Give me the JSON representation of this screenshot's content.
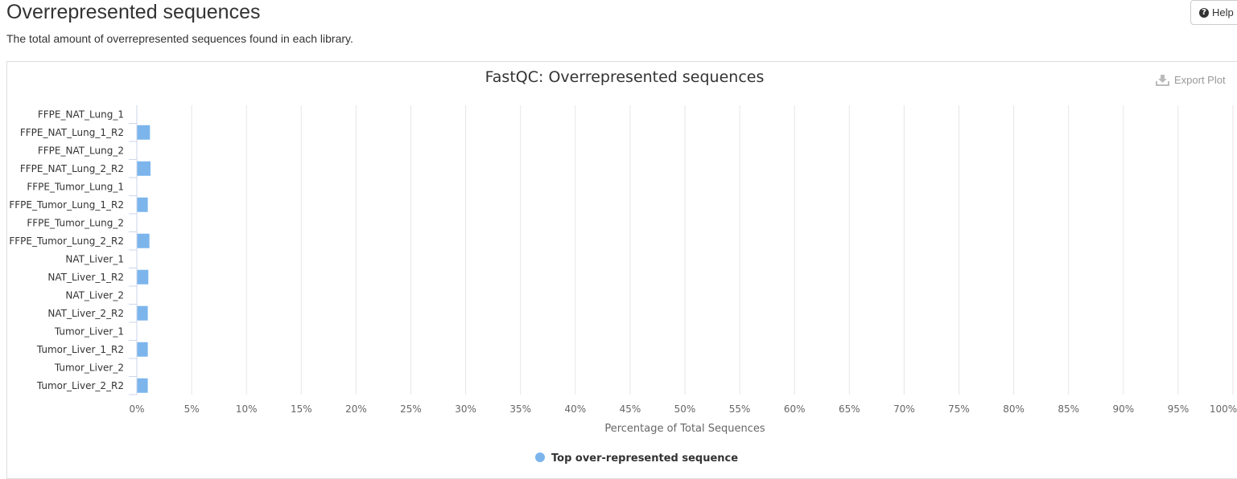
{
  "header": {
    "title": "Overrepresented sequences",
    "description": "The total amount of overrepresented sequences found in each library.",
    "help_label": "Help"
  },
  "toolbar": {
    "export_label": "Export Plot"
  },
  "colors": {
    "bar": "#7cb5ec",
    "grid": "#e6e6e6",
    "axis": "#ccd6eb",
    "text": "#333333"
  },
  "chart_data": {
    "type": "bar",
    "orientation": "horizontal",
    "title": "FastQC: Overrepresented sequences",
    "xlabel": "Percentage of Total Sequences",
    "ylabel": "",
    "xlim": [
      0,
      100
    ],
    "x_ticks": [
      "0%",
      "5%",
      "10%",
      "15%",
      "20%",
      "25%",
      "30%",
      "35%",
      "40%",
      "45%",
      "50%",
      "55%",
      "60%",
      "65%",
      "70%",
      "75%",
      "80%",
      "85%",
      "90%",
      "95%",
      "100%"
    ],
    "grid": true,
    "legend_position": "bottom",
    "categories": [
      "FFPE_NAT_Lung_1",
      "FFPE_NAT_Lung_1_R2",
      "FFPE_NAT_Lung_2",
      "FFPE_NAT_Lung_2_R2",
      "FFPE_Tumor_Lung_1",
      "FFPE_Tumor_Lung_1_R2",
      "FFPE_Tumor_Lung_2",
      "FFPE_Tumor_Lung_2_R2",
      "NAT_Liver_1",
      "NAT_Liver_1_R2",
      "NAT_Liver_2",
      "NAT_Liver_2_R2",
      "Tumor_Liver_1",
      "Tumor_Liver_1_R2",
      "Tumor_Liver_2",
      "Tumor_Liver_2_R2"
    ],
    "series": [
      {
        "name": "Top over-represented sequence",
        "values": [
          0,
          1.2,
          0,
          1.25,
          0,
          1.0,
          0,
          1.15,
          0,
          1.05,
          0,
          1.0,
          0,
          1.0,
          0,
          1.0
        ]
      }
    ]
  }
}
